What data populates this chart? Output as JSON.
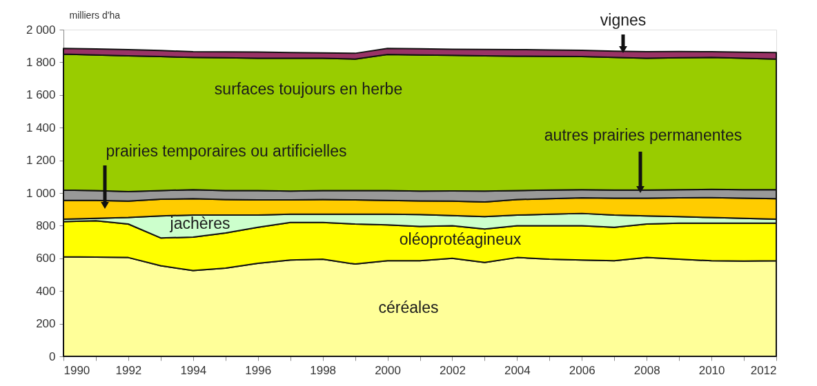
{
  "chart_data": {
    "type": "area",
    "stacked": true,
    "ylabel": "milliers d'ha",
    "x": [
      1990,
      1991,
      1992,
      1993,
      1994,
      1995,
      1996,
      1997,
      1998,
      1999,
      2000,
      2001,
      2002,
      2003,
      2004,
      2005,
      2006,
      2007,
      2008,
      2009,
      2010,
      2011,
      2012
    ],
    "xlim": [
      1990,
      2012
    ],
    "xticks": [
      1990,
      {
        "value": 1991,
        "label": null
      },
      1992,
      {
        "value": 1993,
        "label": null
      },
      1994,
      {
        "value": 1995,
        "label": null
      },
      1996,
      {
        "value": 1997,
        "label": null
      },
      1998,
      {
        "value": 1999,
        "label": null
      },
      2000,
      {
        "value": 2001,
        "label": null
      },
      2002,
      {
        "value": 2003,
        "label": null
      },
      2004,
      {
        "value": 2005,
        "label": null
      },
      2006,
      {
        "value": 2007,
        "label": null
      },
      2008,
      {
        "value": 2009,
        "label": null
      },
      2010,
      {
        "value": 2011,
        "label": null
      },
      2012
    ],
    "ylim": [
      0,
      2000
    ],
    "yticks": [
      0,
      200,
      400,
      600,
      800,
      {
        "value": 1000,
        "label": "1 000"
      },
      {
        "value": 1200,
        "label": "1 200"
      },
      {
        "value": 1400,
        "label": "1 400"
      },
      {
        "value": 1600,
        "label": "1 600"
      },
      {
        "value": 1800,
        "label": "1 800"
      },
      {
        "value": 2000,
        "label": "2 000"
      }
    ],
    "grid": false,
    "legend": false,
    "series": [
      {
        "name": "céréales",
        "color": "#ffff99",
        "values": [
          610,
          608,
          605,
          555,
          525,
          540,
          570,
          590,
          595,
          565,
          585,
          585,
          600,
          575,
          605,
          595,
          590,
          585,
          605,
          595,
          585,
          583,
          585
        ]
      },
      {
        "name": "oléoprotéagineux",
        "color": "#ffff00",
        "values": [
          215,
          222,
          205,
          170,
          205,
          215,
          220,
          230,
          225,
          245,
          220,
          210,
          200,
          205,
          195,
          205,
          210,
          205,
          205,
          220,
          230,
          232,
          230
        ]
      },
      {
        "name": "jachères",
        "color": "#ccffcc",
        "values": [
          15,
          15,
          40,
          135,
          135,
          110,
          75,
          50,
          50,
          60,
          65,
          73,
          62,
          75,
          65,
          70,
          75,
          75,
          50,
          40,
          35,
          30,
          25
        ]
      },
      {
        "name": "prairies temporaires ou artificielles",
        "color": "#ffcc00",
        "values": [
          115,
          110,
          100,
          102,
          100,
          95,
          93,
          88,
          90,
          88,
          85,
          84,
          88,
          90,
          95,
          95,
          95,
          103,
          108,
          115,
          122,
          123,
          125
        ]
      },
      {
        "name": "autres prairies permanentes",
        "color": "#999999",
        "values": [
          63,
          60,
          58,
          53,
          55,
          55,
          57,
          54,
          55,
          57,
          60,
          60,
          63,
          67,
          55,
          53,
          50,
          50,
          50,
          50,
          50,
          52,
          55
        ]
      },
      {
        "name": "surfaces toujours en herbe",
        "color": "#99cc00",
        "values": [
          832,
          830,
          832,
          820,
          810,
          813,
          810,
          813,
          810,
          805,
          833,
          833,
          830,
          828,
          823,
          818,
          815,
          812,
          807,
          808,
          808,
          805,
          800
        ]
      },
      {
        "name": "vignes",
        "color": "#993366",
        "values": [
          35,
          37,
          38,
          37,
          35,
          36,
          38,
          35,
          33,
          35,
          37,
          38,
          37,
          39,
          40,
          40,
          38,
          38,
          40,
          38,
          35,
          37,
          40
        ]
      }
    ]
  }
}
